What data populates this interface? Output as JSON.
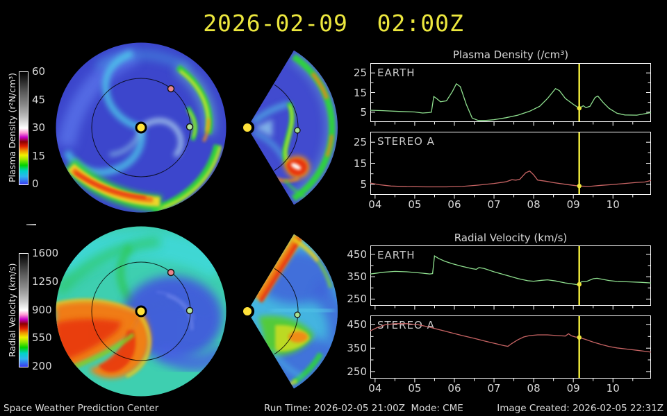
{
  "title": "2026-02-09  02:00Z",
  "colorbars": {
    "density": {
      "label": "Plasma Density (r²N/cm³)",
      "ticks": [
        "60",
        "45",
        "30",
        "15",
        "0"
      ]
    },
    "velocity": {
      "label": "Radial Velocity (km/s)",
      "ticks": [
        "1600",
        "1250",
        "900",
        "550",
        "200"
      ]
    }
  },
  "footer": {
    "left": "Space Weather Prediction Center",
    "center": "Run Time: 2026-02-05 21:00Z  Mode: CME",
    "right": "Image Created: 2026-02-05 22:31Z"
  },
  "colors": {
    "title_yellow": "#ece73e",
    "earth_curve": "#8fe08f",
    "stereo_curve": "#c86464",
    "marker_yellow": "#ede73a",
    "frame_white": "#ffffff"
  },
  "chart_data": [
    {
      "id": "density_timeseries",
      "type": "line",
      "title": "Plasma Density (/cm³)",
      "xlim": [
        3.88,
        10.96
      ],
      "xticks": [
        "04",
        "05",
        "06",
        "07",
        "08",
        "09",
        "10"
      ],
      "xticks_values": [
        4,
        5,
        6,
        7,
        8,
        9,
        10
      ],
      "xminor_values": [
        4.5,
        5.5,
        6.5,
        7.5,
        8.5,
        9.5,
        10.5
      ],
      "ylim": [
        0,
        30
      ],
      "yticks": [
        5,
        15,
        25
      ],
      "yminor": [
        10,
        20
      ],
      "marker_time": 9.15,
      "marker_color": "#ede73a",
      "legend_position": "inside-top-left",
      "series": [
        {
          "name": "EARTH",
          "color": "#8fe08f",
          "points": [
            [
              3.88,
              6
            ],
            [
              4.2,
              5.8
            ],
            [
              4.6,
              5.4
            ],
            [
              5.0,
              5.1
            ],
            [
              5.2,
              4.6
            ],
            [
              5.35,
              4.8
            ],
            [
              5.42,
              5.0
            ],
            [
              5.48,
              13.0
            ],
            [
              5.55,
              12.0
            ],
            [
              5.65,
              10.3
            ],
            [
              5.8,
              10.8
            ],
            [
              5.95,
              15.5
            ],
            [
              6.05,
              19.5
            ],
            [
              6.15,
              18.0
            ],
            [
              6.3,
              9.0
            ],
            [
              6.45,
              2.0
            ],
            [
              6.6,
              0.8
            ],
            [
              6.8,
              0.8
            ],
            [
              7.0,
              1.2
            ],
            [
              7.3,
              2.2
            ],
            [
              7.6,
              3.5
            ],
            [
              7.9,
              5.5
            ],
            [
              8.15,
              8.0
            ],
            [
              8.35,
              12.0
            ],
            [
              8.55,
              17.0
            ],
            [
              8.65,
              16.0
            ],
            [
              8.8,
              12.0
            ],
            [
              9.0,
              9.0
            ],
            [
              9.15,
              7.0
            ],
            [
              9.25,
              8.3
            ],
            [
              9.32,
              7.3
            ],
            [
              9.42,
              8.0
            ],
            [
              9.55,
              12.5
            ],
            [
              9.62,
              13.2
            ],
            [
              9.75,
              10.0
            ],
            [
              9.9,
              7.0
            ],
            [
              10.1,
              4.5
            ],
            [
              10.3,
              3.6
            ],
            [
              10.6,
              3.5
            ],
            [
              10.96,
              4.8
            ]
          ]
        },
        {
          "name": "STEREO A",
          "color": "#c86464",
          "points": [
            [
              3.88,
              5.6
            ],
            [
              4.1,
              4.8
            ],
            [
              4.4,
              4.2
            ],
            [
              4.8,
              3.9
            ],
            [
              5.3,
              3.8
            ],
            [
              5.8,
              3.8
            ],
            [
              6.2,
              4.0
            ],
            [
              6.6,
              4.6
            ],
            [
              7.0,
              5.4
            ],
            [
              7.3,
              6.2
            ],
            [
              7.45,
              7.2
            ],
            [
              7.55,
              7.0
            ],
            [
              7.65,
              7.4
            ],
            [
              7.8,
              10.5
            ],
            [
              7.9,
              11.3
            ],
            [
              8.0,
              9.5
            ],
            [
              8.1,
              7.0
            ],
            [
              8.3,
              6.5
            ],
            [
              8.5,
              5.8
            ],
            [
              8.8,
              5.0
            ],
            [
              9.0,
              4.5
            ],
            [
              9.15,
              4.2
            ],
            [
              9.4,
              4.0
            ],
            [
              9.7,
              4.5
            ],
            [
              10.0,
              4.9
            ],
            [
              10.3,
              5.4
            ],
            [
              10.6,
              5.9
            ],
            [
              10.8,
              6.1
            ],
            [
              10.96,
              6.8
            ]
          ]
        }
      ]
    },
    {
      "id": "velocity_timeseries",
      "type": "line",
      "title": "Radial Velocity (km/s)",
      "xlim": [
        3.88,
        10.96
      ],
      "xticks": [
        "04",
        "05",
        "06",
        "07",
        "08",
        "09",
        "10"
      ],
      "xticks_values": [
        4,
        5,
        6,
        7,
        8,
        9,
        10
      ],
      "xminor_values": [
        4.5,
        5.5,
        6.5,
        7.5,
        8.5,
        9.5,
        10.5
      ],
      "ylim": [
        220,
        490
      ],
      "yticks": [
        250,
        350,
        450
      ],
      "yminor": [
        300,
        400
      ],
      "marker_time": 9.15,
      "marker_color": "#ede73a",
      "legend_position": "inside-top-left",
      "series": [
        {
          "name": "EARTH",
          "color": "#8fe08f",
          "points": [
            [
              3.88,
              362
            ],
            [
              4.2,
              370
            ],
            [
              4.5,
              374
            ],
            [
              4.8,
              372
            ],
            [
              5.0,
              369
            ],
            [
              5.2,
              366
            ],
            [
              5.38,
              362
            ],
            [
              5.45,
              364
            ],
            [
              5.5,
              443
            ],
            [
              5.6,
              432
            ],
            [
              5.75,
              420
            ],
            [
              5.95,
              408
            ],
            [
              6.2,
              396
            ],
            [
              6.45,
              386
            ],
            [
              6.55,
              383
            ],
            [
              6.62,
              391
            ],
            [
              6.75,
              387
            ],
            [
              7.0,
              372
            ],
            [
              7.3,
              357
            ],
            [
              7.6,
              342
            ],
            [
              7.85,
              332
            ],
            [
              8.0,
              330
            ],
            [
              8.2,
              334
            ],
            [
              8.35,
              336
            ],
            [
              8.55,
              331
            ],
            [
              8.8,
              322
            ],
            [
              9.0,
              317
            ],
            [
              9.1,
              314
            ],
            [
              9.15,
              316
            ],
            [
              9.2,
              327
            ],
            [
              9.35,
              330
            ],
            [
              9.5,
              341
            ],
            [
              9.6,
              343
            ],
            [
              9.75,
              338
            ],
            [
              9.9,
              333
            ],
            [
              10.1,
              329
            ],
            [
              10.4,
              327
            ],
            [
              10.7,
              325
            ],
            [
              10.96,
              322
            ]
          ]
        },
        {
          "name": "STEREO A",
          "color": "#c86464",
          "points": [
            [
              3.88,
              424
            ],
            [
              4.05,
              438
            ],
            [
              4.25,
              450
            ],
            [
              4.5,
              455
            ],
            [
              4.8,
              455
            ],
            [
              5.1,
              450
            ],
            [
              5.35,
              441
            ],
            [
              5.6,
              430
            ],
            [
              5.9,
              417
            ],
            [
              6.2,
              404
            ],
            [
              6.5,
              392
            ],
            [
              6.8,
              379
            ],
            [
              7.05,
              369
            ],
            [
              7.25,
              361
            ],
            [
              7.35,
              358
            ],
            [
              7.45,
              370
            ],
            [
              7.6,
              386
            ],
            [
              7.75,
              398
            ],
            [
              7.9,
              404
            ],
            [
              8.1,
              407
            ],
            [
              8.35,
              407
            ],
            [
              8.6,
              404
            ],
            [
              8.8,
              402
            ],
            [
              8.88,
              412
            ],
            [
              8.95,
              403
            ],
            [
              9.05,
              398
            ],
            [
              9.15,
              396
            ],
            [
              9.3,
              388
            ],
            [
              9.5,
              376
            ],
            [
              9.7,
              366
            ],
            [
              9.9,
              357
            ],
            [
              10.1,
              351
            ],
            [
              10.35,
              346
            ],
            [
              10.6,
              341
            ],
            [
              10.8,
              337
            ],
            [
              10.96,
              333
            ]
          ]
        }
      ]
    },
    {
      "id": "density_map_ecliptic",
      "type": "heatmap",
      "view": "polar ecliptic plane",
      "quantity": "Plasma Density (r²N/cm³)",
      "scale": [
        0,
        60
      ],
      "markers": [
        "Sun",
        "Earth",
        "STEREO A"
      ]
    },
    {
      "id": "density_map_meridional",
      "type": "heatmap",
      "view": "meridional wedge",
      "quantity": "Plasma Density (r²N/cm³)",
      "scale": [
        0,
        60
      ],
      "markers": [
        "Sun",
        "Earth"
      ]
    },
    {
      "id": "velocity_map_ecliptic",
      "type": "heatmap",
      "view": "polar ecliptic plane",
      "quantity": "Radial Velocity (km/s)",
      "scale": [
        200,
        1600
      ],
      "markers": [
        "Sun",
        "Earth",
        "STEREO A"
      ]
    },
    {
      "id": "velocity_map_meridional",
      "type": "heatmap",
      "view": "meridional wedge",
      "quantity": "Radial Velocity (km/s)",
      "scale": [
        200,
        1600
      ],
      "markers": [
        "Sun",
        "Earth"
      ]
    }
  ]
}
